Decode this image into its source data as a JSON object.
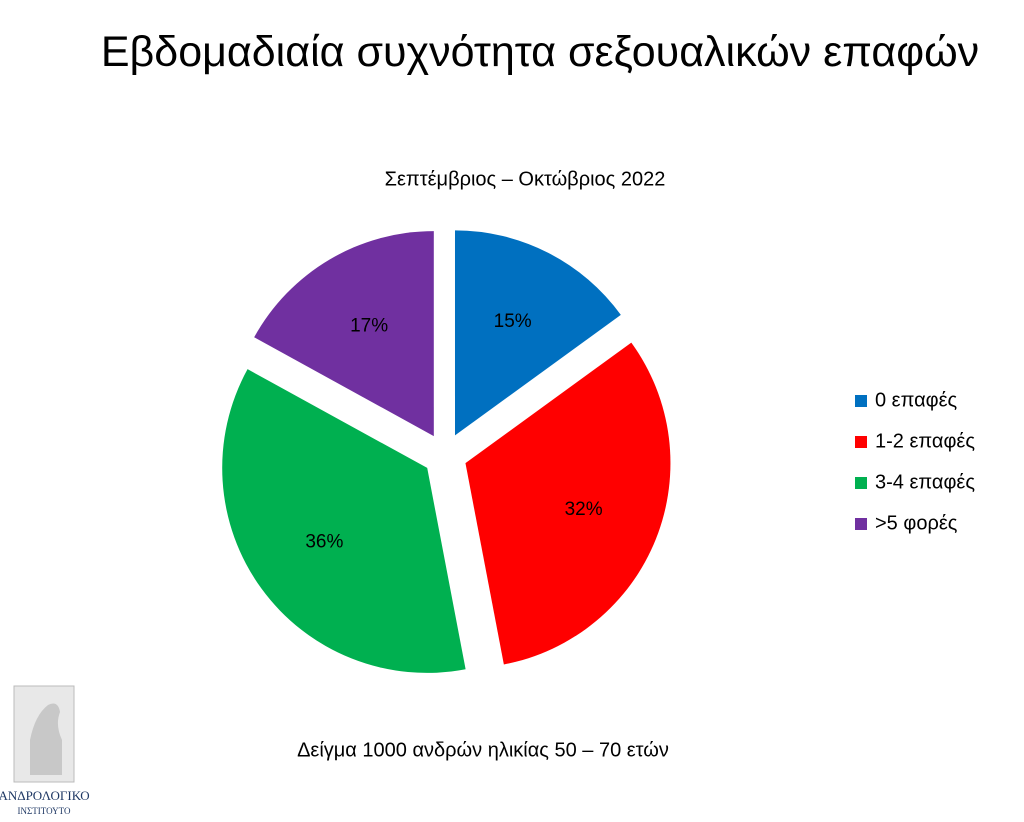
{
  "chart_data": {
    "type": "pie",
    "title": "Εβδομαδιαία συχνότητα σεξουαλικών επαφών",
    "subtitle": "Σεπτέμβριος – Οκτώβριος 2022",
    "categories": [
      "0 επαφές",
      "1-2 επαφές",
      "3-4 επαφές",
      ">5 φορές"
    ],
    "values": [
      15,
      32,
      36,
      17
    ],
    "value_labels": [
      "15%",
      "32%",
      "36%",
      "17%"
    ],
    "colors": [
      "#0070c0",
      "#ff0000",
      "#00b050",
      "#7030a0"
    ],
    "legend": "right",
    "note": "Δείγμα 1000 ανδρών ηλικίας 50 – 70 ετών",
    "logo_text": [
      "ΑΝΔΡΟΛΟΓΙΚΟ",
      "ΙΝΣΤΙΤΟΥΤΟ"
    ]
  }
}
